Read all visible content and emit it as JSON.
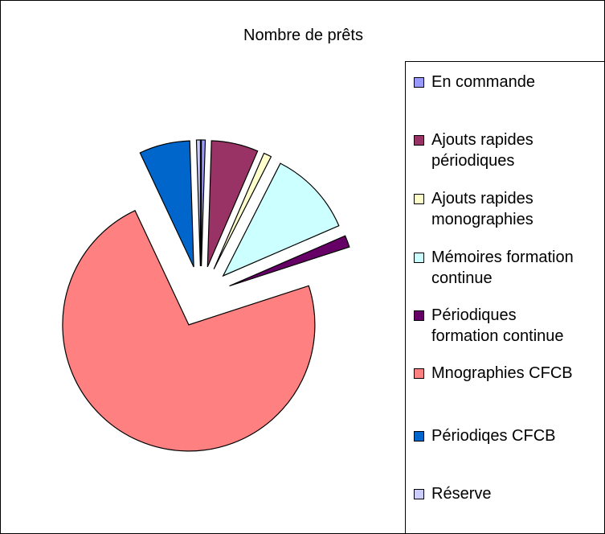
{
  "chart_data": {
    "type": "pie",
    "title": "Nombre de prêts",
    "categories": [
      "En commande",
      "Ajouts rapides périodiques",
      "Ajouts rapides monographies",
      "Mémoires formation continue",
      "Périodiques formation continue",
      "Mnographies CFCB",
      "Périodiqes CFCB",
      "Réserve"
    ],
    "values": [
      0.5,
      6,
      1,
      11,
      1.5,
      73,
      6.5,
      0.5
    ],
    "colors": [
      "#9999FF",
      "#993366",
      "#FFFFCC",
      "#CCFFFF",
      "#660066",
      "#FF8080",
      "#0066CC",
      "#CCCCFF"
    ],
    "legend": "right"
  }
}
